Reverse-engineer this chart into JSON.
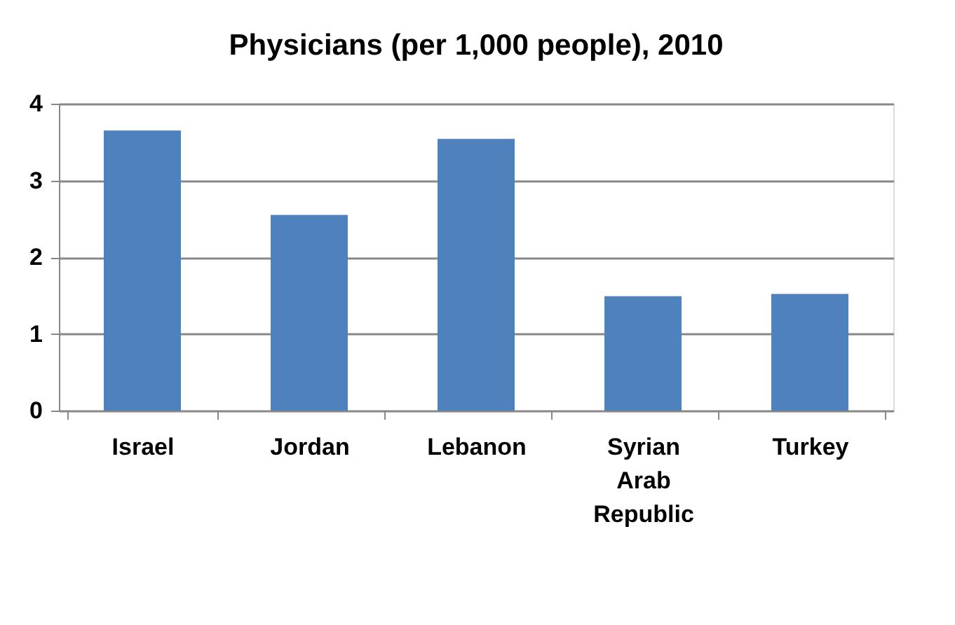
{
  "chart_data": {
    "type": "bar",
    "title": "Physicians (per 1,000 people), 2010",
    "categories": [
      "Israel",
      "Jordan",
      "Lebanon",
      "Syrian Arab Republic",
      "Turkey"
    ],
    "values": [
      3.65,
      2.55,
      3.54,
      1.49,
      1.52
    ],
    "color": "#4f81bd",
    "ylim": [
      0,
      4
    ],
    "yticks": [
      0,
      1,
      2,
      3,
      4
    ],
    "grid": "y"
  }
}
